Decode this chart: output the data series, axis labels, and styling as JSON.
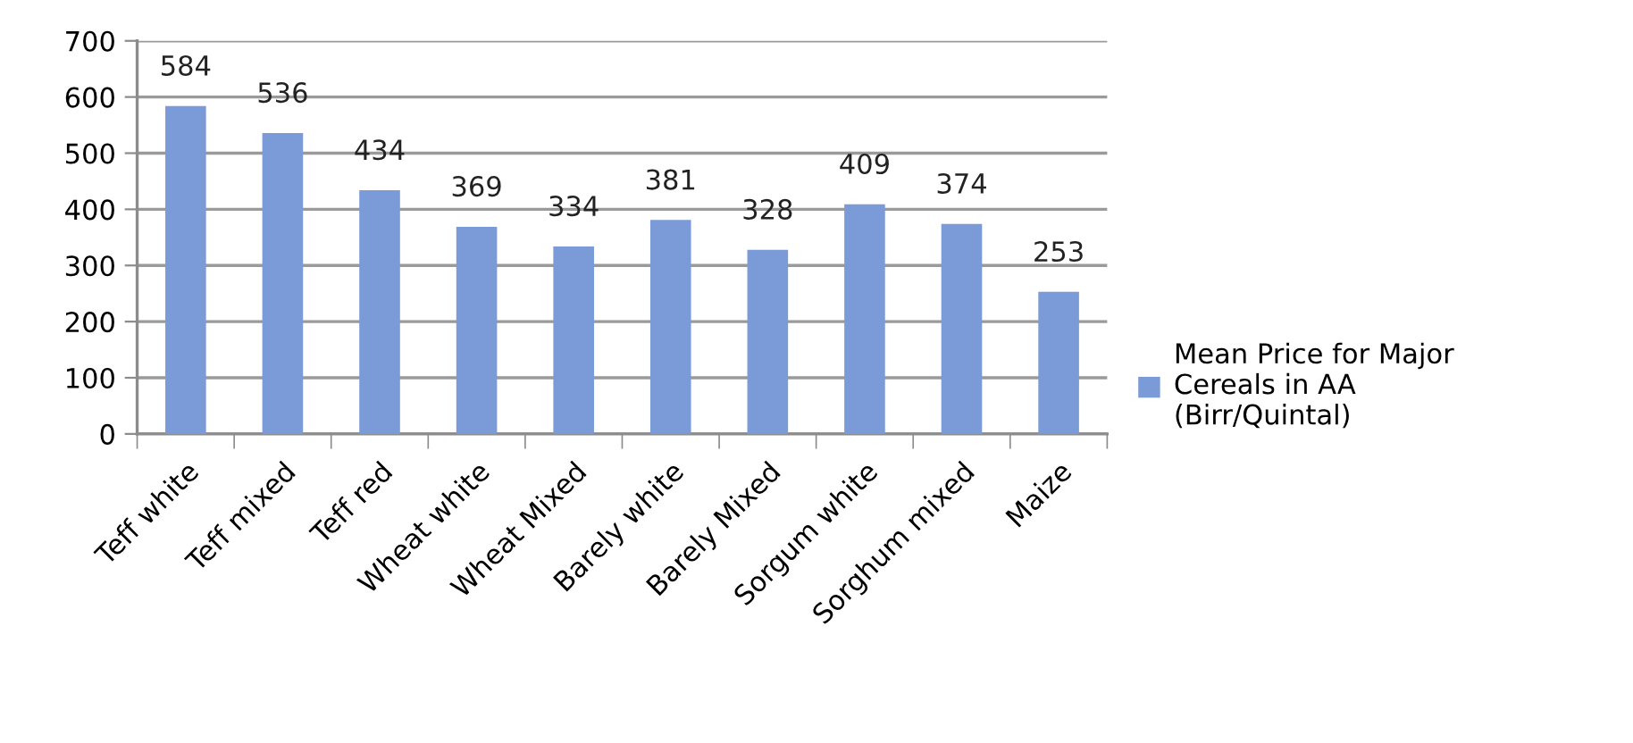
{
  "chart_data": {
    "type": "bar",
    "categories": [
      "Teff white",
      "Teff mixed",
      "Teff red",
      "Wheat white",
      "Wheat Mixed",
      "Barely white",
      "Barely Mixed",
      "Sorgum white",
      "Sorghum mixed",
      "Maize"
    ],
    "series": [
      {
        "name": "Mean Price for Major Cereals in AA (Birr/Quintal)",
        "color": "#7b9bd8",
        "values": [
          584,
          536,
          434,
          369,
          334,
          381,
          328,
          409,
          374,
          253
        ]
      }
    ],
    "ylim": [
      0,
      700
    ],
    "yticks": [
      0,
      100,
      200,
      300,
      400,
      500,
      600,
      700
    ],
    "grid": "y",
    "legend": "right",
    "data_labels": true
  }
}
